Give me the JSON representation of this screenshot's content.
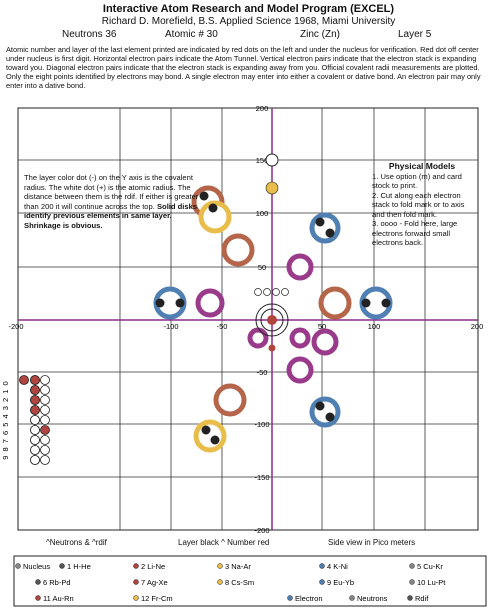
{
  "header": {
    "title": "Interactive Atom Research and Model Program (EXCEL)",
    "author": "Richard D. Morefield, B.S. Applied Science 1968, Miami University",
    "neutrons": "Neutrons 36",
    "atomic": "Atomic # 30",
    "element": "Zinc (Zn)",
    "layer": "Layer 5"
  },
  "intro": "Atomic number and layer of the last element printed are indicated by red dots on the left and under the nucleus for verification. Red dot off center under nucleus is first digit. Horizontal electron pairs indicate the Atom Tunnel. Vertical electron pairs indicate that the electron stack is expanding toward you. Diagonal electron pairs indicate that the electron stack is expanding away from you. Official covalent radii measurements are plotted. Only the eight points identified by electrons may bond. A single electron may enter into either a covalent or dative bond. An electron pair may only enter into a dative bond.",
  "chart": {
    "x_ticks": [
      "-200",
      "-100",
      "-50",
      "50",
      "100",
      "200"
    ],
    "y_ticks": [
      "200",
      "150",
      "100",
      "50",
      "-50",
      "-100",
      "-150",
      "-200"
    ],
    "index_labels": "9 8 7 6 5 4 3 2 1 0",
    "note_left": {
      "text": "The layer color dot (-) on the Y axis is the covalent radius. The white dot (+) is the atomic radius. The distance between them is the rdif. If either is greater than 200 it will continue across the top.",
      "bold": "Solid disks identify previous elements in same layer. Shrinkage is obvious."
    },
    "note_right": {
      "title": "Physical Models",
      "items": [
        "1. Use option (m) and card stock to print.",
        "2. Cut along each electron stack to fold mark or to axis and then fold mark.",
        "3. oooo - Fold here, large electrons forward small electrons back."
      ]
    }
  },
  "captions": [
    "^Neutrons & ^rdif",
    "Layer black ^ Number red",
    "Side view in Pico meters"
  ],
  "legend": [
    [
      "Nucleus",
      "1 H-He",
      "2 Li-Ne",
      "3 Na-Ar",
      "4 K-Ni",
      "5 Cu-Kr"
    ],
    [
      "6 Rb-Pd",
      "7 Ag-Xe",
      "8 Cs-Sm",
      "9 Eu-Yb",
      "10 Lu-Pt"
    ],
    [
      "11 Au-Rn",
      "12 Fr-Cm",
      "Electron",
      "Neutrons",
      "Rdif"
    ]
  ]
}
